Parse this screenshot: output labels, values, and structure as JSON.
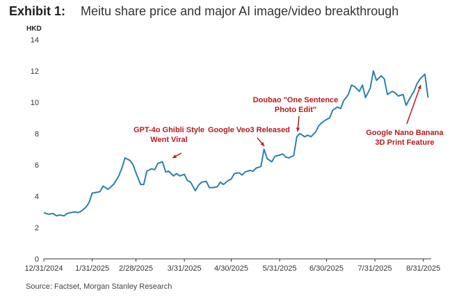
{
  "header": {
    "exhibit": "Exhibit 1:",
    "title": "Meitu share price and major AI image/video breakthrough"
  },
  "footer": {
    "source": "Source: Factset, Morgan Stanley Research"
  },
  "colors": {
    "line": "#2b7fb0",
    "axis": "#333333",
    "annotation": "#b8191c"
  },
  "chart_data": {
    "type": "line",
    "ylabel": "HKD",
    "ylim": [
      0,
      14
    ],
    "yticks": [
      0,
      2,
      4,
      6,
      8,
      10,
      12,
      14
    ],
    "xlim": [
      "2024-12-31",
      "2025-09-05"
    ],
    "xticks": [
      "2024-12-31",
      "2025-01-31",
      "2025-02-28",
      "2025-03-31",
      "2025-04-30",
      "2025-05-31",
      "2025-06-30",
      "2025-07-31",
      "2025-08-31"
    ],
    "xticklabels": [
      "12/31/2024",
      "1/31/2025",
      "2/28/2025",
      "3/31/2025",
      "4/30/2025",
      "5/31/2025",
      "6/30/2025",
      "7/31/2025",
      "8/31/2025"
    ],
    "grid": false,
    "series": [
      {
        "points": [
          [
            "2024-12-31",
            2.95
          ],
          [
            "2025-01-03",
            2.85
          ],
          [
            "2025-01-06",
            2.9
          ],
          [
            "2025-01-08",
            2.75
          ],
          [
            "2025-01-10",
            2.8
          ],
          [
            "2025-01-13",
            2.75
          ],
          [
            "2025-01-15",
            2.9
          ],
          [
            "2025-01-17",
            2.95
          ],
          [
            "2025-01-20",
            3.0
          ],
          [
            "2025-01-22",
            2.95
          ],
          [
            "2025-01-24",
            3.05
          ],
          [
            "2025-01-27",
            3.3
          ],
          [
            "2025-01-29",
            3.6
          ],
          [
            "2025-01-31",
            4.2
          ],
          [
            "2025-02-03",
            4.25
          ],
          [
            "2025-02-05",
            4.3
          ],
          [
            "2025-02-07",
            4.65
          ],
          [
            "2025-02-10",
            4.45
          ],
          [
            "2025-02-12",
            4.6
          ],
          [
            "2025-02-14",
            4.8
          ],
          [
            "2025-02-17",
            5.3
          ],
          [
            "2025-02-19",
            5.8
          ],
          [
            "2025-02-21",
            6.45
          ],
          [
            "2025-02-24",
            6.3
          ],
          [
            "2025-02-26",
            6.05
          ],
          [
            "2025-02-28",
            5.5
          ],
          [
            "2025-03-03",
            4.75
          ],
          [
            "2025-03-05",
            4.75
          ],
          [
            "2025-03-07",
            5.6
          ],
          [
            "2025-03-10",
            5.75
          ],
          [
            "2025-03-12",
            5.7
          ],
          [
            "2025-03-14",
            6.1
          ],
          [
            "2025-03-17",
            6.2
          ],
          [
            "2025-03-19",
            5.55
          ],
          [
            "2025-03-21",
            5.6
          ],
          [
            "2025-03-24",
            5.3
          ],
          [
            "2025-03-26",
            5.45
          ],
          [
            "2025-03-28",
            5.3
          ],
          [
            "2025-03-31",
            5.4
          ],
          [
            "2025-04-02",
            5.0
          ],
          [
            "2025-04-04",
            4.9
          ],
          [
            "2025-04-07",
            4.35
          ],
          [
            "2025-04-09",
            4.7
          ],
          [
            "2025-04-11",
            4.9
          ],
          [
            "2025-04-14",
            4.95
          ],
          [
            "2025-04-16",
            4.55
          ],
          [
            "2025-04-18",
            4.55
          ],
          [
            "2025-04-21",
            4.6
          ],
          [
            "2025-04-23",
            4.9
          ],
          [
            "2025-04-25",
            4.75
          ],
          [
            "2025-04-28",
            5.0
          ],
          [
            "2025-04-30",
            5.1
          ],
          [
            "2025-05-02",
            5.45
          ],
          [
            "2025-05-05",
            5.5
          ],
          [
            "2025-05-07",
            5.35
          ],
          [
            "2025-05-09",
            5.55
          ],
          [
            "2025-05-12",
            5.65
          ],
          [
            "2025-05-14",
            5.6
          ],
          [
            "2025-05-16",
            5.8
          ],
          [
            "2025-05-19",
            5.9
          ],
          [
            "2025-05-21",
            7.0
          ],
          [
            "2025-05-23",
            6.4
          ],
          [
            "2025-05-26",
            6.2
          ],
          [
            "2025-05-28",
            6.55
          ],
          [
            "2025-05-30",
            6.6
          ],
          [
            "2025-06-02",
            6.7
          ],
          [
            "2025-06-04",
            6.5
          ],
          [
            "2025-06-06",
            6.45
          ],
          [
            "2025-06-09",
            6.6
          ],
          [
            "2025-06-11",
            7.8
          ],
          [
            "2025-06-13",
            8.0
          ],
          [
            "2025-06-16",
            7.8
          ],
          [
            "2025-06-18",
            7.9
          ],
          [
            "2025-06-20",
            7.8
          ],
          [
            "2025-06-23",
            8.1
          ],
          [
            "2025-06-25",
            8.5
          ],
          [
            "2025-06-27",
            8.7
          ],
          [
            "2025-06-30",
            8.9
          ],
          [
            "2025-07-02",
            9.0
          ],
          [
            "2025-07-04",
            9.5
          ],
          [
            "2025-07-07",
            9.7
          ],
          [
            "2025-07-09",
            9.6
          ],
          [
            "2025-07-11",
            10.1
          ],
          [
            "2025-07-14",
            10.5
          ],
          [
            "2025-07-16",
            11.1
          ],
          [
            "2025-07-18",
            11.0
          ],
          [
            "2025-07-21",
            10.7
          ],
          [
            "2025-07-23",
            11.1
          ],
          [
            "2025-07-25",
            10.3
          ],
          [
            "2025-07-28",
            10.9
          ],
          [
            "2025-07-30",
            12.0
          ],
          [
            "2025-08-01",
            11.4
          ],
          [
            "2025-08-04",
            11.7
          ],
          [
            "2025-08-06",
            11.5
          ],
          [
            "2025-08-08",
            10.5
          ],
          [
            "2025-08-11",
            10.7
          ],
          [
            "2025-08-13",
            10.6
          ],
          [
            "2025-08-15",
            10.4
          ],
          [
            "2025-08-18",
            10.5
          ],
          [
            "2025-08-20",
            9.8
          ],
          [
            "2025-08-22",
            10.2
          ],
          [
            "2025-08-25",
            10.7
          ],
          [
            "2025-08-27",
            11.2
          ],
          [
            "2025-08-29",
            11.5
          ],
          [
            "2025-09-01",
            11.8
          ],
          [
            "2025-09-03",
            10.3
          ]
        ]
      }
    ],
    "annotations": [
      {
        "lines": [
          "GPT-4o Ghibli Style",
          "Went Viral"
        ],
        "date": "2025-03-19",
        "value": 5.6
      },
      {
        "lines": [
          "Google Veo3 Released"
        ],
        "date": "2025-05-21",
        "value": 7.1
      },
      {
        "lines": [
          "Doubao \"One Sentence",
          "Photo Edit\""
        ],
        "date": "2025-06-11",
        "value": 8.0
      },
      {
        "lines": [
          "Google Nano Banana",
          "3D Print Feature"
        ],
        "date": "2025-09-01",
        "value": 11.8
      }
    ]
  }
}
